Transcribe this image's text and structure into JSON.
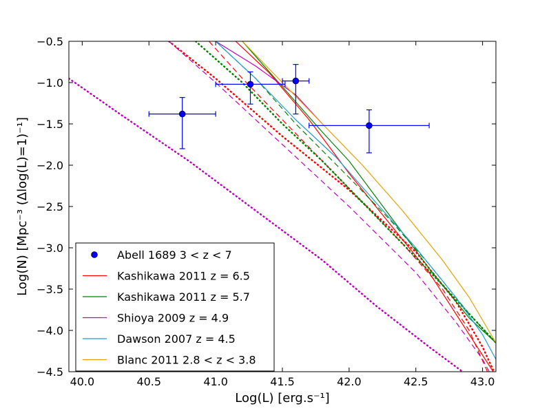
{
  "chart_data": {
    "type": "line",
    "xlabel": "Log(L) [erg.s⁻¹]",
    "ylabel": "Log(N) [Mpc⁻³ (Δlog(L)=1)⁻¹]",
    "xlim": [
      39.9,
      43.1
    ],
    "ylim": [
      -4.5,
      -0.5
    ],
    "xticks": [
      40.0,
      40.5,
      41.0,
      41.5,
      42.0,
      42.5,
      43.0
    ],
    "xtick_labels": [
      "40.0",
      "40.5",
      "41.0",
      "41.5",
      "42.0",
      "42.5",
      "43.0"
    ],
    "yticks": [
      -0.5,
      -1.0,
      -1.5,
      -2.0,
      -2.5,
      -3.0,
      -3.5,
      -4.0,
      -4.5
    ],
    "ytick_labels": [
      "−0.5",
      "−1.0",
      "−1.5",
      "−2.0",
      "−2.5",
      "−3.0",
      "−3.5",
      "−4.0",
      "−4.5"
    ],
    "legend_position": "lower-left",
    "points": {
      "name": "Abell 1689 3 < z < 7",
      "color": "#0000ff",
      "data": [
        {
          "x": 40.75,
          "y": -1.38,
          "xerr": [
            0.25,
            0.25
          ],
          "yerr": [
            0.42,
            0.2
          ]
        },
        {
          "x": 41.26,
          "y": -1.02,
          "xerr": [
            0.26,
            0.26
          ],
          "yerr": [
            0.24,
            0.15
          ]
        },
        {
          "x": 41.6,
          "y": -0.98,
          "xerr": [
            0.1,
            0.1
          ],
          "yerr": [
            0.4,
            0.2
          ]
        },
        {
          "x": 42.15,
          "y": -1.52,
          "xerr": [
            0.45,
            0.45
          ],
          "yerr": [
            0.33,
            0.19
          ]
        }
      ]
    },
    "series": [
      {
        "name": "Kashikawa 2011 z = 6.5",
        "color": "#ff0000",
        "style": "solid",
        "in_legend": true,
        "x": [
          41.15,
          41.4,
          41.7,
          42.0,
          42.3,
          42.6,
          42.8,
          43.0,
          43.1
        ],
        "y": [
          -0.5,
          -0.88,
          -1.45,
          -2.1,
          -2.7,
          -3.3,
          -3.8,
          -4.3,
          -4.55
        ]
      },
      {
        "name": "Kashikawa 2011 z = 6.5 (dashed)",
        "color": "#ff0000",
        "style": "dashed",
        "in_legend": false,
        "x": [
          40.95,
          41.2,
          41.5,
          41.8,
          42.1,
          42.4,
          42.7,
          42.9,
          43.05
        ],
        "y": [
          -0.5,
          -0.95,
          -1.45,
          -1.95,
          -2.45,
          -2.95,
          -3.5,
          -4.0,
          -4.55
        ]
      },
      {
        "name": "Kashikawa 2011 z = 6.5 (dotted)",
        "color": "#ff0000",
        "style": "dotted",
        "in_legend": false,
        "x": [
          40.65,
          41.0,
          41.5,
          42.0,
          42.5,
          42.8,
          43.0,
          43.1
        ],
        "y": [
          -0.5,
          -0.95,
          -1.65,
          -2.3,
          -3.05,
          -3.65,
          -4.2,
          -4.55
        ]
      },
      {
        "name": "Kashikawa 2011 z = 5.7",
        "color": "#008000",
        "style": "solid",
        "in_legend": true,
        "x": [
          41.2,
          41.5,
          41.8,
          42.0,
          42.3,
          42.6,
          42.9,
          43.1
        ],
        "y": [
          -0.5,
          -1.05,
          -1.6,
          -1.95,
          -2.6,
          -3.25,
          -3.85,
          -4.15
        ]
      },
      {
        "name": "Kashikawa 2011 z = 5.7 (dashed)",
        "color": "#008000",
        "style": "dashed",
        "in_legend": false,
        "x": [
          41.0,
          41.3,
          41.6,
          42.0,
          42.3,
          42.6,
          42.9,
          43.1
        ],
        "y": [
          -0.5,
          -0.95,
          -1.5,
          -2.15,
          -2.65,
          -3.2,
          -3.8,
          -4.15
        ]
      },
      {
        "name": "Kashikawa 2011 z = 5.7 (dotted)",
        "color": "#008000",
        "style": "dotted",
        "in_legend": false,
        "x": [
          40.85,
          41.2,
          41.5,
          41.8,
          42.1,
          42.4,
          42.7,
          42.9,
          43.1
        ],
        "y": [
          -0.5,
          -1.0,
          -1.5,
          -1.95,
          -2.45,
          -2.95,
          -3.45,
          -3.8,
          -4.15
        ]
      },
      {
        "name": "Shioya 2009 z = 4.9",
        "color": "#bf00bf",
        "style": "solid",
        "in_legend": true,
        "x": [
          41.0,
          41.3,
          41.6,
          41.8
        ],
        "y": [
          -0.5,
          -0.8,
          -1.15,
          -1.5
        ]
      },
      {
        "name": "Shioya 2009 z = 4.9 (dashed)",
        "color": "#bf00bf",
        "style": "dashed",
        "in_legend": false,
        "x": [
          40.65,
          41.0,
          41.5,
          42.0,
          42.5,
          42.8,
          43.0,
          43.05
        ],
        "y": [
          -0.5,
          -1.0,
          -1.75,
          -2.5,
          -3.3,
          -3.9,
          -4.35,
          -4.5
        ]
      },
      {
        "name": "Shioya 2009 z = 4.9 (dotted)",
        "color": "#bf00bf",
        "style": "dotted",
        "in_legend": false,
        "x": [
          39.9,
          40.3,
          40.8,
          41.3,
          41.8,
          42.2,
          42.6,
          42.85
        ],
        "y": [
          -0.95,
          -1.4,
          -1.95,
          -2.55,
          -3.15,
          -3.7,
          -4.2,
          -4.5
        ]
      },
      {
        "name": "Dawson 2007 z = 4.5",
        "color": "#1f9bd7",
        "style": "solid",
        "in_legend": true,
        "x": [
          41.0,
          41.3,
          41.6,
          41.9,
          42.2,
          42.5,
          42.8,
          43.0,
          43.1
        ],
        "y": [
          -0.5,
          -0.95,
          -1.45,
          -1.9,
          -2.45,
          -3.0,
          -3.6,
          -4.05,
          -4.35
        ]
      },
      {
        "name": "Blanc 2011 2.8 < z < 3.8",
        "color": "#e5a000",
        "style": "solid",
        "in_legend": true,
        "x": [
          41.2,
          41.5,
          41.8,
          42.1,
          42.4,
          42.7,
          42.9,
          43.1
        ],
        "y": [
          -0.5,
          -1.0,
          -1.5,
          -2.0,
          -2.55,
          -3.15,
          -3.6,
          -4.15
        ]
      }
    ]
  }
}
